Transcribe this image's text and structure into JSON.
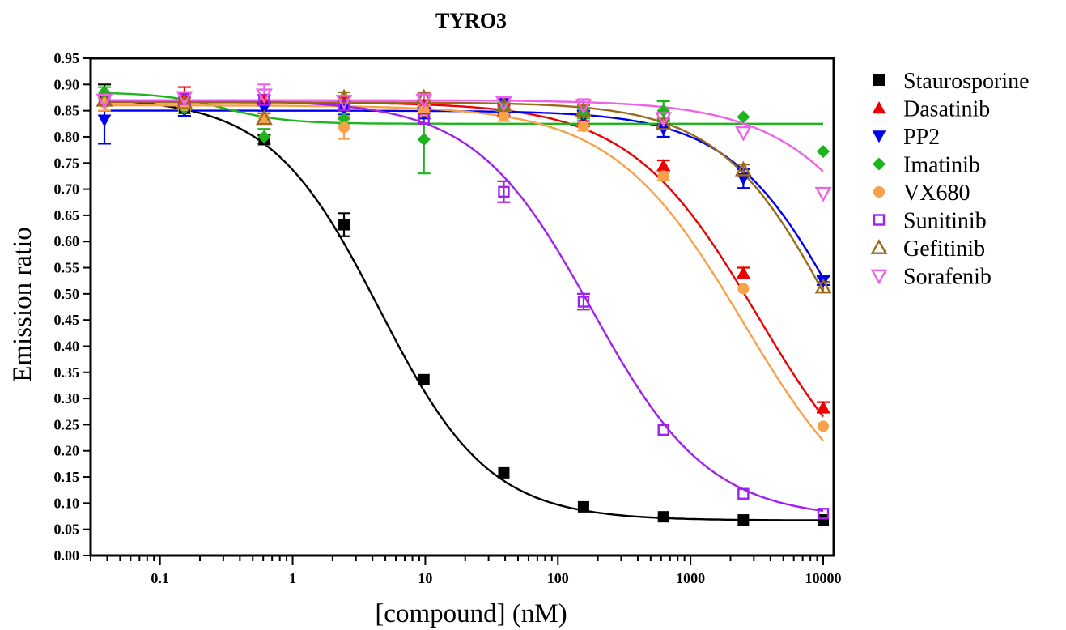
{
  "chart_data": {
    "type": "scatter",
    "title": "TYRO3",
    "xlabel": "[compound] (nM)",
    "ylabel": "Emission ratio",
    "xscale": "log",
    "xlim": [
      0.03,
      12000
    ],
    "ylim": [
      0,
      0.95
    ],
    "x_ticks": [
      0.1,
      1,
      10,
      100,
      1000,
      10000
    ],
    "x_tick_labels": [
      "0.1",
      "1",
      "10",
      "100",
      "1000",
      "10000"
    ],
    "y_ticks": [
      0.0,
      0.05,
      0.1,
      0.15,
      0.2,
      0.25,
      0.3,
      0.35,
      0.4,
      0.45,
      0.5,
      0.55,
      0.6,
      0.65,
      0.7,
      0.75,
      0.8,
      0.85,
      0.9,
      0.95
    ],
    "y_tick_labels": [
      "0.00",
      "0.05",
      "0.10",
      "0.15",
      "0.20",
      "0.25",
      "0.30",
      "0.35",
      "0.40",
      "0.45",
      "0.50",
      "0.55",
      "0.60",
      "0.65",
      "0.70",
      "0.75",
      "0.80",
      "0.85",
      "0.90",
      "0.95"
    ],
    "grid": false,
    "legend_position": "right",
    "x": [
      0.0381,
      0.153,
      0.61,
      2.44,
      9.77,
      39.1,
      156,
      625,
      2500,
      10000
    ],
    "series": [
      {
        "name": "Staurosporine",
        "color": "#000000",
        "marker": "square-filled",
        "values": [
          0.875,
          0.855,
          0.795,
          0.632,
          0.336,
          0.158,
          0.093,
          0.074,
          0.068,
          0.068
        ],
        "errors": [
          0.025,
          0.005,
          0.008,
          0.022,
          0.005,
          0.004,
          0.004,
          0.003,
          0.002,
          0.002
        ],
        "fit": {
          "top": 0.875,
          "bottom": 0.067,
          "ic50": 4.5,
          "hill": 1.05
        }
      },
      {
        "name": "Dasatinib",
        "color": "#ee0000",
        "marker": "triangle-up-filled",
        "values": [
          0.87,
          0.875,
          0.87,
          0.865,
          0.86,
          0.85,
          0.83,
          0.745,
          0.54,
          0.283
        ],
        "errors": [
          0.01,
          0.02,
          0.01,
          0.01,
          0.01,
          0.01,
          0.01,
          0.01,
          0.01,
          0.01
        ],
        "fit": {
          "top": 0.866,
          "bottom": 0.05,
          "ic50": 3200,
          "hill": 0.9
        }
      },
      {
        "name": "PP2",
        "color": "#0000ee",
        "marker": "triangle-down-filled",
        "values": [
          0.832,
          0.85,
          0.855,
          0.852,
          0.845,
          0.868,
          0.84,
          0.815,
          0.72,
          0.525
        ],
        "errors": [
          0.045,
          0.01,
          0.01,
          0.01,
          0.01,
          0.005,
          0.01,
          0.015,
          0.018,
          0.008
        ],
        "fit": {
          "top": 0.85,
          "bottom": 0.05,
          "ic50": 15000,
          "hill": 1.0
        }
      },
      {
        "name": "Imatinib",
        "color": "#1eb41e",
        "marker": "diamond-filled",
        "values": [
          0.885,
          0.855,
          0.8,
          0.835,
          0.795,
          0.855,
          0.845,
          0.85,
          0.838,
          0.772
        ],
        "errors": [
          0.01,
          0.01,
          0.015,
          0.01,
          0.065,
          0.01,
          0.01,
          0.018,
          0.005,
          0.005
        ],
        "fit": {
          "top": 0.885,
          "bottom": 0.825,
          "ic50": 0.3,
          "hill": 1.8
        }
      },
      {
        "name": "VX680",
        "color": "#f7a14a",
        "marker": "circle-filled",
        "values": [
          0.865,
          0.86,
          0.835,
          0.818,
          0.85,
          0.84,
          0.82,
          0.725,
          0.51,
          0.247
        ],
        "errors": [
          0.015,
          0.01,
          0.01,
          0.022,
          0.01,
          0.01,
          0.008,
          0.008,
          0.006,
          0.006
        ],
        "fit": {
          "top": 0.86,
          "bottom": 0.03,
          "ic50": 2500,
          "hill": 0.88
        }
      },
      {
        "name": "Sunitinib",
        "color": "#a020f0",
        "marker": "square-open",
        "values": [
          0.87,
          0.872,
          0.87,
          0.86,
          0.835,
          0.695,
          0.485,
          0.24,
          0.118,
          0.08
        ],
        "errors": [
          0.01,
          0.01,
          0.01,
          0.01,
          0.01,
          0.02,
          0.015,
          0.006,
          0.006,
          0.005
        ],
        "fit": {
          "top": 0.87,
          "bottom": 0.07,
          "ic50": 180,
          "hill": 0.98
        }
      },
      {
        "name": "Gefitinib",
        "color": "#9a6a1c",
        "marker": "triangle-up-open",
        "values": [
          0.87,
          0.865,
          0.835,
          0.875,
          0.875,
          0.86,
          0.85,
          0.825,
          0.737,
          0.513
        ],
        "errors": [
          0.01,
          0.01,
          0.01,
          0.01,
          0.01,
          0.01,
          0.01,
          0.01,
          0.01,
          0.01
        ],
        "fit": {
          "top": 0.866,
          "bottom": 0.05,
          "ic50": 12500,
          "hill": 1.0
        }
      },
      {
        "name": "Sorafenib",
        "color": "#f060e8",
        "marker": "triangle-down-open",
        "values": [
          0.87,
          0.875,
          0.88,
          0.868,
          0.87,
          0.865,
          0.86,
          0.835,
          0.808,
          0.692
        ],
        "errors": [
          0.01,
          0.01,
          0.02,
          0.01,
          0.012,
          0.008,
          0.012,
          0.012,
          0.005,
          0.005
        ],
        "fit": {
          "top": 0.87,
          "bottom": 0.05,
          "ic50": 60000,
          "hill": 0.9
        }
      }
    ]
  }
}
